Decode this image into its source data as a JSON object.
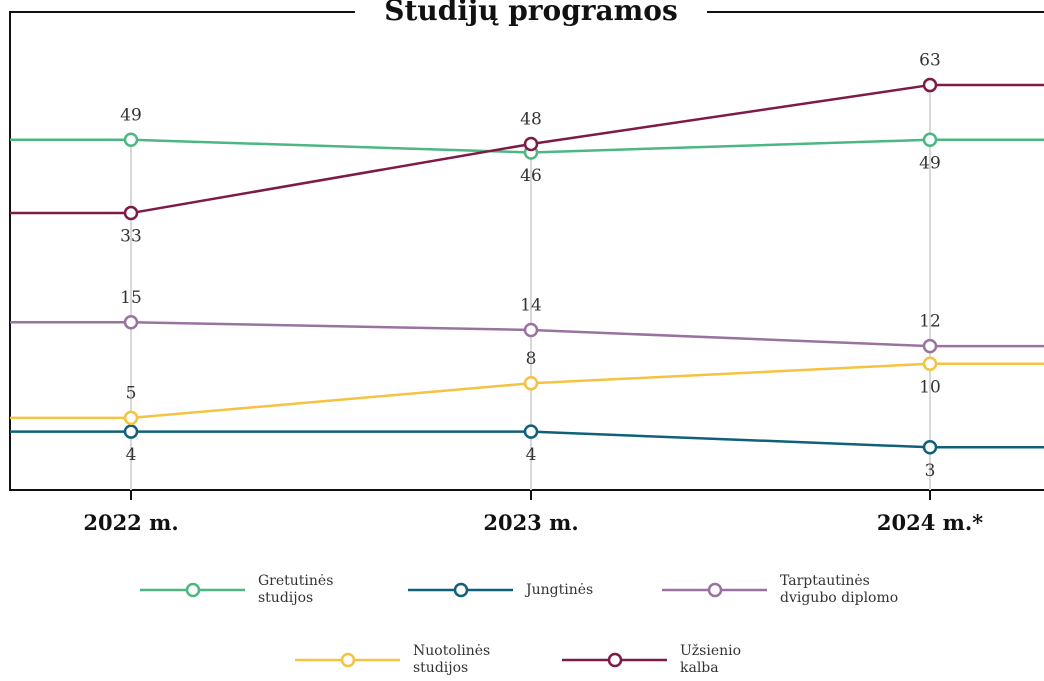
{
  "chart_data": {
    "type": "line",
    "title": "Studijų programos",
    "yscale": "sqrt",
    "ylim": [
      1,
      70
    ],
    "categories": [
      "2022 m.",
      "2023 m.",
      "2024 m.*"
    ],
    "series": [
      {
        "name": "Gretutinės studijos",
        "color": "#4cb782",
        "values": [
          49,
          46,
          49
        ]
      },
      {
        "name": "Jungtinės",
        "color": "#0e6179",
        "values": [
          4,
          4,
          3
        ]
      },
      {
        "name": "Tarptautinės dvigubo diplomo",
        "color": "#9a72a0",
        "values": [
          15,
          14,
          12
        ]
      },
      {
        "name": "Nuotolinės studijos",
        "color": "#f5c242",
        "values": [
          5,
          8,
          10
        ]
      },
      {
        "name": "Užsienio kalba",
        "color": "#7d1a47",
        "values": [
          33,
          48,
          63
        ]
      }
    ]
  }
}
